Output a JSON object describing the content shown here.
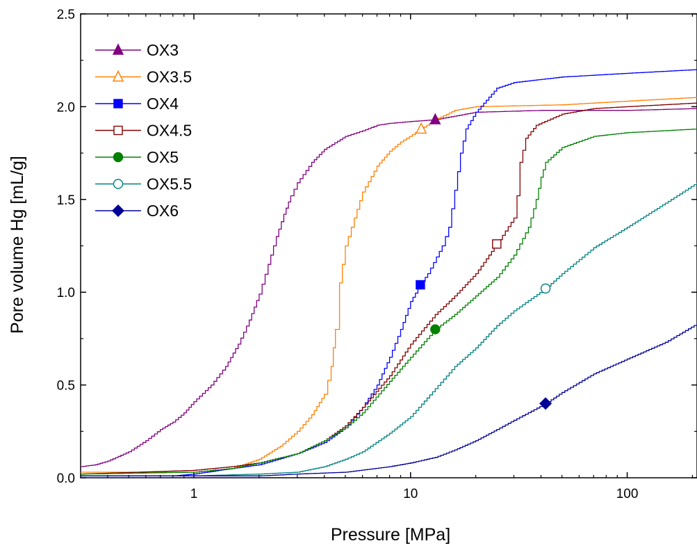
{
  "chart_data": {
    "type": "line",
    "title": "",
    "xlabel": "Pressure [MPa]",
    "ylabel": "Pore volume Hg [mL/g]",
    "x_scale": "log",
    "xlim": [
      0.3,
      210
    ],
    "ylim": [
      0,
      2.5
    ],
    "x_ticks": [
      1,
      10,
      100
    ],
    "x_tick_labels": [
      "1",
      "10",
      "100"
    ],
    "y_ticks": [
      0,
      0.5,
      1,
      1.5,
      2,
      2.5
    ],
    "y_tick_labels": [
      "0.0",
      "0.5",
      "1.0",
      "1.5",
      "2.0",
      "2.5"
    ],
    "grid": false,
    "legend_position": "top-left",
    "series": [
      {
        "name": "OX3",
        "color": "#800080",
        "marker": "triangle",
        "filled": true,
        "marker_point": [
          13,
          1.93
        ],
        "points": [
          [
            0.3,
            0.06
          ],
          [
            0.35,
            0.07
          ],
          [
            0.4,
            0.09
          ],
          [
            0.5,
            0.14
          ],
          [
            0.6,
            0.2
          ],
          [
            0.7,
            0.26
          ],
          [
            0.8,
            0.3
          ],
          [
            0.9,
            0.35
          ],
          [
            1,
            0.41
          ],
          [
            1.2,
            0.5
          ],
          [
            1.4,
            0.6
          ],
          [
            1.6,
            0.72
          ],
          [
            1.8,
            0.85
          ],
          [
            2,
            0.99
          ],
          [
            2.2,
            1.15
          ],
          [
            2.4,
            1.3
          ],
          [
            2.6,
            1.42
          ],
          [
            2.8,
            1.52
          ],
          [
            3.0,
            1.59
          ],
          [
            3.5,
            1.7
          ],
          [
            4,
            1.77
          ],
          [
            5,
            1.84
          ],
          [
            6,
            1.87
          ],
          [
            7,
            1.9
          ],
          [
            8,
            1.91
          ],
          [
            10,
            1.92
          ],
          [
            13,
            1.93
          ],
          [
            20,
            1.97
          ],
          [
            40,
            1.98
          ],
          [
            100,
            1.98
          ],
          [
            210,
            1.99
          ]
        ]
      },
      {
        "name": "OX3.5",
        "color": "#ff8000",
        "marker": "triangle",
        "filled": false,
        "marker_point": [
          11.2,
          1.88
        ],
        "points": [
          [
            0.3,
            0.03
          ],
          [
            1,
            0.03
          ],
          [
            1.5,
            0.05
          ],
          [
            2,
            0.1
          ],
          [
            2.5,
            0.17
          ],
          [
            3,
            0.25
          ],
          [
            3.5,
            0.34
          ],
          [
            4,
            0.45
          ],
          [
            4.3,
            0.6
          ],
          [
            4.5,
            0.8
          ],
          [
            4.7,
            1.05
          ],
          [
            5,
            1.25
          ],
          [
            5.5,
            1.4
          ],
          [
            6,
            1.54
          ],
          [
            7,
            1.68
          ],
          [
            8,
            1.76
          ],
          [
            9,
            1.81
          ],
          [
            11.2,
            1.88
          ],
          [
            13,
            1.93
          ],
          [
            16,
            1.98
          ],
          [
            20,
            2.0
          ],
          [
            50,
            2.01
          ],
          [
            100,
            2.03
          ],
          [
            210,
            2.05
          ]
        ]
      },
      {
        "name": "OX4",
        "color": "#0000ff",
        "marker": "square",
        "filled": true,
        "marker_point": [
          11.1,
          1.04
        ],
        "points": [
          [
            0.3,
            0.01
          ],
          [
            0.5,
            0.01
          ],
          [
            0.8,
            0.01
          ],
          [
            1,
            0.02
          ],
          [
            1.5,
            0.05
          ],
          [
            2,
            0.07
          ],
          [
            3,
            0.13
          ],
          [
            4,
            0.19
          ],
          [
            5,
            0.27
          ],
          [
            6,
            0.38
          ],
          [
            7,
            0.5
          ],
          [
            8,
            0.65
          ],
          [
            9,
            0.8
          ],
          [
            10,
            0.95
          ],
          [
            11.1,
            1.04
          ],
          [
            12,
            1.1
          ],
          [
            14,
            1.25
          ],
          [
            15,
            1.35
          ],
          [
            16,
            1.55
          ],
          [
            17,
            1.75
          ],
          [
            18,
            1.88
          ],
          [
            20,
            1.97
          ],
          [
            25,
            2.1
          ],
          [
            30,
            2.13
          ],
          [
            50,
            2.16
          ],
          [
            100,
            2.18
          ],
          [
            210,
            2.2
          ]
        ]
      },
      {
        "name": "OX4.5",
        "color": "#800000",
        "marker": "square",
        "filled": false,
        "marker_point": [
          25,
          1.26
        ],
        "points": [
          [
            0.3,
            0.02
          ],
          [
            1,
            0.04
          ],
          [
            1.5,
            0.06
          ],
          [
            2,
            0.08
          ],
          [
            3,
            0.13
          ],
          [
            4,
            0.2
          ],
          [
            5,
            0.28
          ],
          [
            6,
            0.38
          ],
          [
            8,
            0.55
          ],
          [
            10,
            0.72
          ],
          [
            13,
            0.88
          ],
          [
            16,
            0.98
          ],
          [
            20,
            1.1
          ],
          [
            25,
            1.26
          ],
          [
            30,
            1.4
          ],
          [
            31,
            1.52
          ],
          [
            32,
            1.7
          ],
          [
            34,
            1.83
          ],
          [
            38,
            1.9
          ],
          [
            50,
            1.96
          ],
          [
            70,
            1.99
          ],
          [
            100,
            2.0
          ],
          [
            210,
            2.02
          ]
        ]
      },
      {
        "name": "OX5",
        "color": "#008000",
        "marker": "circle",
        "filled": true,
        "marker_point": [
          13,
          0.8
        ],
        "points": [
          [
            0.3,
            0.02
          ],
          [
            1,
            0.03
          ],
          [
            1.5,
            0.05
          ],
          [
            2,
            0.08
          ],
          [
            3,
            0.13
          ],
          [
            4,
            0.2
          ],
          [
            5,
            0.27
          ],
          [
            6,
            0.35
          ],
          [
            8,
            0.52
          ],
          [
            10,
            0.65
          ],
          [
            13,
            0.8
          ],
          [
            16,
            0.88
          ],
          [
            20,
            0.98
          ],
          [
            25,
            1.08
          ],
          [
            30,
            1.2
          ],
          [
            35,
            1.35
          ],
          [
            38,
            1.5
          ],
          [
            40,
            1.62
          ],
          [
            42,
            1.7
          ],
          [
            50,
            1.78
          ],
          [
            70,
            1.84
          ],
          [
            100,
            1.86
          ],
          [
            210,
            1.88
          ]
        ]
      },
      {
        "name": "OX5.5",
        "color": "#008080",
        "marker": "circle",
        "filled": false,
        "marker_point": [
          42,
          1.02
        ],
        "points": [
          [
            0.3,
            0.01
          ],
          [
            1,
            0.01
          ],
          [
            2,
            0.02
          ],
          [
            3,
            0.03
          ],
          [
            4,
            0.06
          ],
          [
            5,
            0.1
          ],
          [
            6,
            0.14
          ],
          [
            8,
            0.24
          ],
          [
            10,
            0.33
          ],
          [
            13,
            0.48
          ],
          [
            16,
            0.6
          ],
          [
            20,
            0.7
          ],
          [
            25,
            0.82
          ],
          [
            30,
            0.9
          ],
          [
            42,
            1.02
          ],
          [
            50,
            1.1
          ],
          [
            70,
            1.24
          ],
          [
            100,
            1.35
          ],
          [
            150,
            1.48
          ],
          [
            210,
            1.59
          ]
        ]
      },
      {
        "name": "OX6",
        "color": "#000099",
        "marker": "diamond",
        "filled": true,
        "marker_point": [
          42,
          0.4
        ],
        "points": [
          [
            0.3,
            0.01
          ],
          [
            1,
            0.01
          ],
          [
            2,
            0.01
          ],
          [
            3,
            0.02
          ],
          [
            5,
            0.03
          ],
          [
            8,
            0.06
          ],
          [
            10,
            0.08
          ],
          [
            13,
            0.11
          ],
          [
            16,
            0.15
          ],
          [
            20,
            0.2
          ],
          [
            25,
            0.26
          ],
          [
            30,
            0.31
          ],
          [
            42,
            0.4
          ],
          [
            50,
            0.46
          ],
          [
            70,
            0.56
          ],
          [
            100,
            0.64
          ],
          [
            150,
            0.73
          ],
          [
            210,
            0.83
          ]
        ]
      }
    ]
  }
}
